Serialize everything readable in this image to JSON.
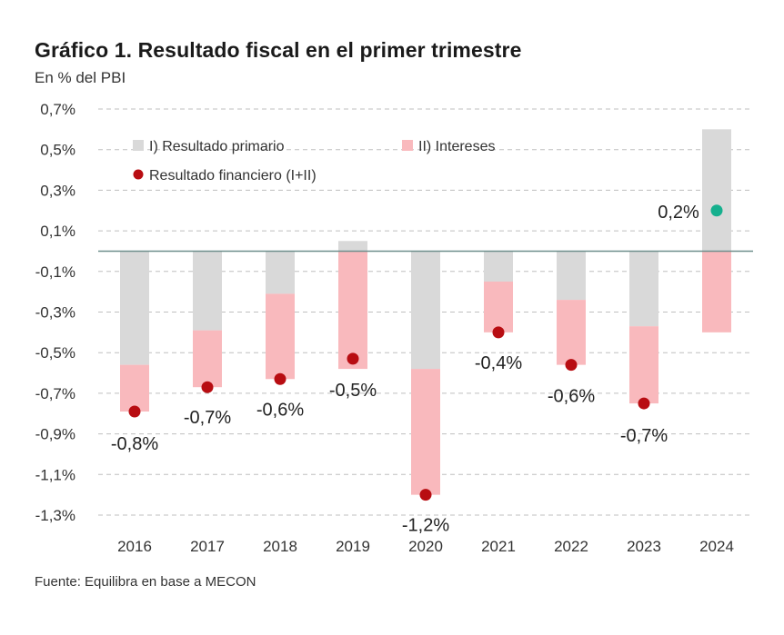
{
  "header": {
    "title": "Gráfico 1. Resultado fiscal en el primer trimestre",
    "subtitle": "En % del PBI"
  },
  "footer": {
    "source": "Fuente: Equilibra en base a MECON"
  },
  "colors": {
    "primary": "#d9d9d9",
    "interest": "#f9b9bd",
    "financial": "#b80d12",
    "financial_positive": "#16b08e",
    "grid": "#bfbfbf",
    "zero_line": "#6e8f8c"
  },
  "chart_data": {
    "type": "bar",
    "title": "Gráfico 1. Resultado fiscal en el primer trimestre",
    "subtitle": "En % del PBI",
    "categories": [
      "2016",
      "2017",
      "2018",
      "2019",
      "2020",
      "2021",
      "2022",
      "2023",
      "2024"
    ],
    "series": [
      {
        "name": "I) Resultado primario",
        "values": [
          -0.56,
          -0.39,
          -0.21,
          0.05,
          -0.58,
          -0.15,
          -0.24,
          -0.37,
          0.6
        ]
      },
      {
        "name": "II) Intereses",
        "values": [
          -0.23,
          -0.28,
          -0.42,
          -0.58,
          -0.62,
          -0.25,
          -0.32,
          -0.38,
          -0.4
        ]
      },
      {
        "name": "Resultado financiero (I+II)",
        "values": [
          -0.79,
          -0.67,
          -0.63,
          -0.53,
          -1.2,
          -0.4,
          -0.56,
          -0.75,
          0.2
        ],
        "labels": [
          "-0,8%",
          "-0,7%",
          "-0,6%",
          "-0,5%",
          "-1,2%",
          "-0,4%",
          "-0,6%",
          "-0,7%",
          "0,2%"
        ]
      }
    ],
    "ylim": [
      -1.3,
      0.7
    ],
    "yticks": [
      0.7,
      0.5,
      0.3,
      0.1,
      -0.1,
      -0.3,
      -0.5,
      -0.7,
      -0.9,
      -1.1,
      -1.3
    ],
    "ytick_labels": [
      "0,7%",
      "0,5%",
      "0,3%",
      "0,1%",
      "-0,1%",
      "-0,3%",
      "-0,5%",
      "-0,7%",
      "-0,9%",
      "-1,1%",
      "-1,3%"
    ],
    "grid": true,
    "legend_position": "top-left"
  }
}
